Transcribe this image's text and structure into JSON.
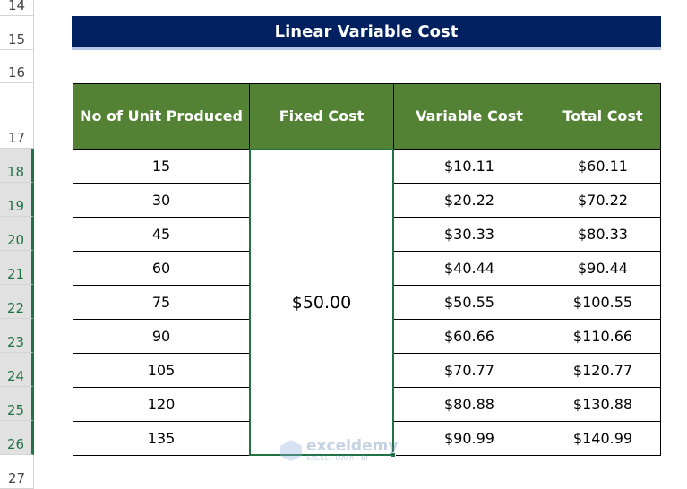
{
  "row_headers": [
    "14",
    "15",
    "16",
    "17",
    "18",
    "19",
    "20",
    "21",
    "22",
    "23",
    "24",
    "25",
    "26",
    "27"
  ],
  "title": "Linear Variable Cost",
  "table": {
    "header": [
      "No of Unit Produced",
      "Fixed Cost",
      "Variable Cost",
      "Total Cost"
    ],
    "fixed_cost": "$50.00",
    "rows": [
      [
        "15",
        "$10.11",
        "$60.11"
      ],
      [
        "30",
        "$20.22",
        "$70.22"
      ],
      [
        "45",
        "$30.33",
        "$80.33"
      ],
      [
        "60",
        "$40.44",
        "$90.44"
      ],
      [
        "75",
        "$50.55",
        "$100.55"
      ],
      [
        "90",
        "$60.66",
        "$110.66"
      ],
      [
        "105",
        "$70.77",
        "$120.77"
      ],
      [
        "120",
        "$80.88",
        "$130.88"
      ],
      [
        "135",
        "$90.99",
        "$140.99"
      ]
    ]
  },
  "watermark": {
    "brand": "exceldemy",
    "tagline": "EXCEL · DATA · BI"
  }
}
